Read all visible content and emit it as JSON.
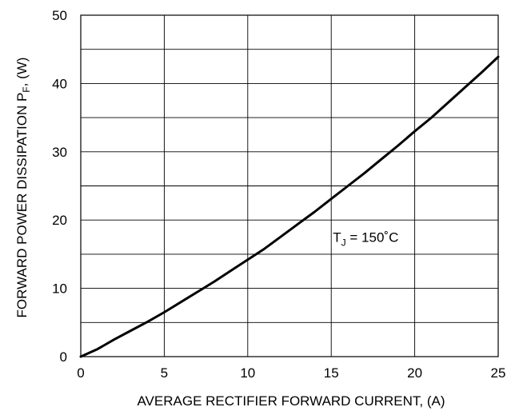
{
  "chart_data": {
    "type": "line",
    "xlabel": "AVERAGE RECTIFIER FORWARD CURRENT, (A)",
    "ylabel": {
      "main": "FORWARD POWER DISSIPATION P",
      "sub": "F",
      "unit": ", (W)"
    },
    "xlim": [
      0,
      25
    ],
    "ylim": [
      0,
      50
    ],
    "x_ticks": [
      0,
      5,
      10,
      15,
      20,
      25
    ],
    "y_ticks": [
      0,
      10,
      20,
      30,
      40,
      50
    ],
    "x_minor_gridlines": [
      0,
      5,
      10,
      15,
      20,
      25
    ],
    "y_gridlines": [
      0,
      5,
      10,
      15,
      20,
      25,
      30,
      35,
      40,
      45,
      50
    ],
    "grid": true,
    "annotation": {
      "main": "T",
      "sub": "J",
      "rest": " = 150˚C",
      "at_x": 15.1,
      "at_y": 16.8
    },
    "series": [
      {
        "color": "#000000",
        "x": [
          0,
          1,
          2,
          3,
          4,
          5,
          6,
          7,
          8,
          9,
          10,
          11,
          12,
          13,
          14,
          15,
          16,
          17,
          18,
          19,
          20,
          21,
          22,
          23,
          24,
          25
        ],
        "y": [
          0,
          1.1,
          2.5,
          3.8,
          5.1,
          6.5,
          8.0,
          9.5,
          11.0,
          12.6,
          14.2,
          15.8,
          17.6,
          19.4,
          21.2,
          23.1,
          25.0,
          26.9,
          28.9,
          30.9,
          33.0,
          35.0,
          37.2,
          39.4,
          41.6,
          43.9
        ]
      }
    ]
  }
}
